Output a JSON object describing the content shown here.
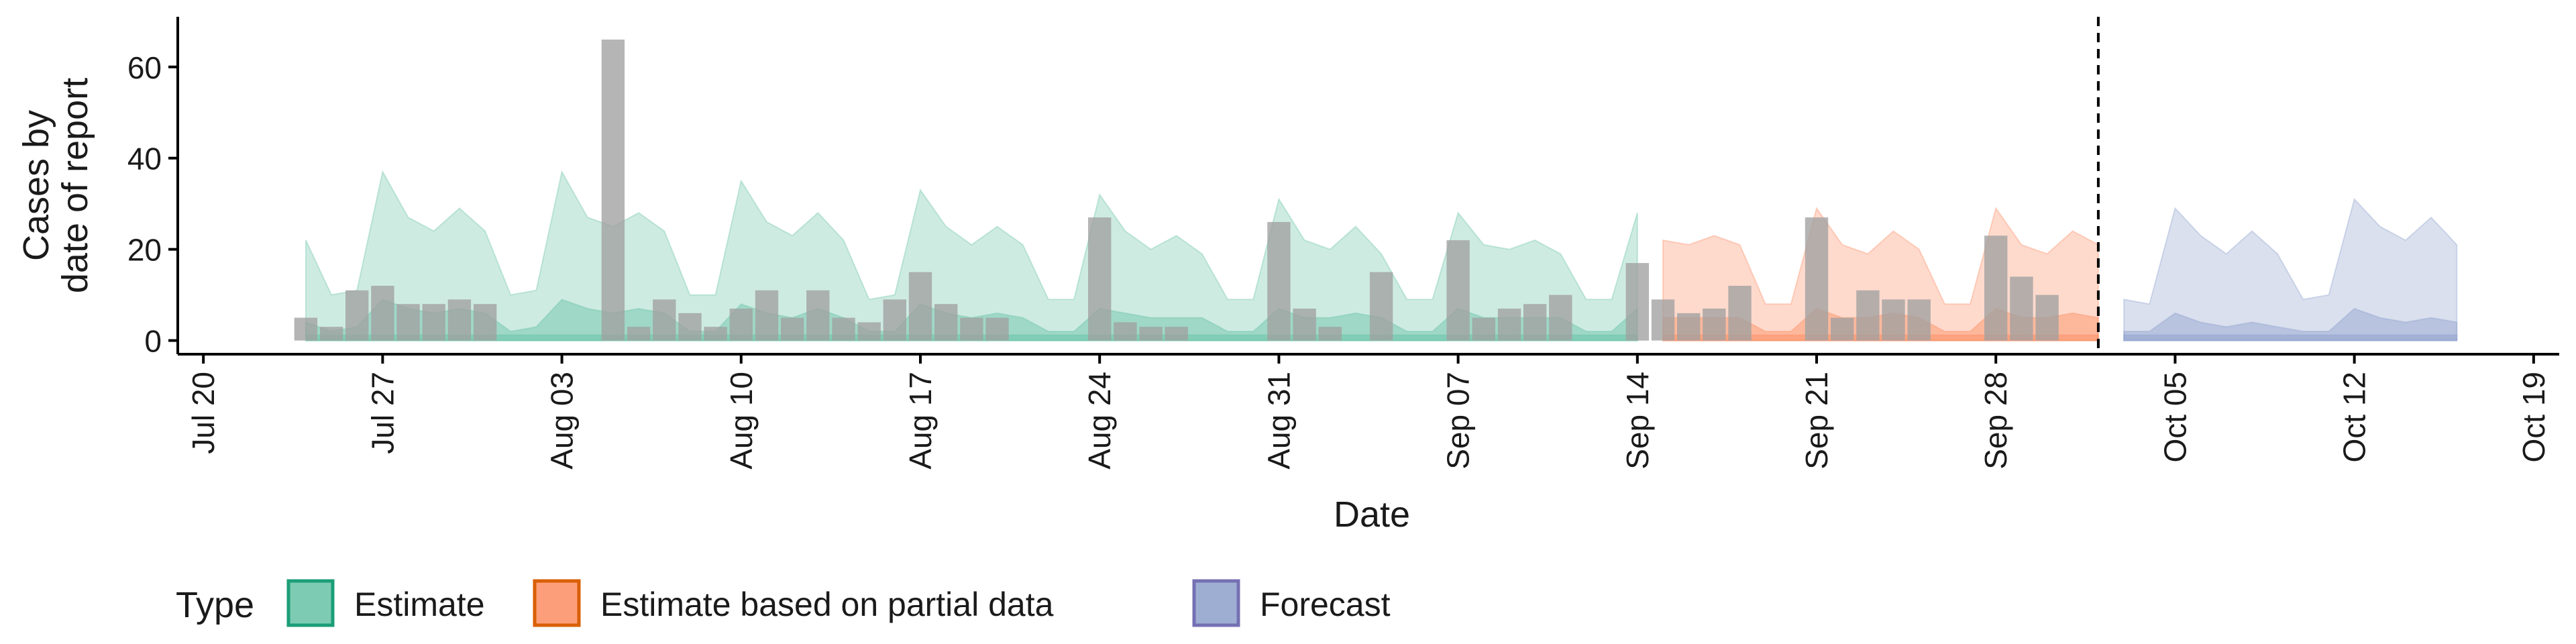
{
  "chart_data": {
    "type": "area",
    "title": "",
    "xlabel": "Date",
    "ylabel_lines": [
      "Cases by",
      "date of report"
    ],
    "ylim": [
      -3,
      71
    ],
    "yticks": [
      0,
      20,
      40,
      60
    ],
    "xlim": [
      "2020-07-19",
      "2020-10-20"
    ],
    "xticks": [
      {
        "date": "2020-07-20",
        "label": "Jul 20"
      },
      {
        "date": "2020-07-27",
        "label": "Jul 27"
      },
      {
        "date": "2020-08-03",
        "label": "Aug 03"
      },
      {
        "date": "2020-08-10",
        "label": "Aug 10"
      },
      {
        "date": "2020-08-17",
        "label": "Aug 17"
      },
      {
        "date": "2020-08-24",
        "label": "Aug 24"
      },
      {
        "date": "2020-08-31",
        "label": "Aug 31"
      },
      {
        "date": "2020-09-07",
        "label": "Sep 07"
      },
      {
        "date": "2020-09-14",
        "label": "Sep 14"
      },
      {
        "date": "2020-09-21",
        "label": "Sep 21"
      },
      {
        "date": "2020-09-28",
        "label": "Sep 28"
      },
      {
        "date": "2020-10-05",
        "label": "Oct 05"
      },
      {
        "date": "2020-10-12",
        "label": "Oct 12"
      },
      {
        "date": "2020-10-19",
        "label": "Oct 19"
      }
    ],
    "forecast_date": "2020-10-02",
    "legend": {
      "title": "Type",
      "position": "bottom",
      "entries": [
        {
          "label": "Estimate",
          "fill": "#66c2a5",
          "stroke": "#1b9e77"
        },
        {
          "label": "Estimate based on partial data",
          "fill": "#fc8d62",
          "stroke": "#d95f02"
        },
        {
          "label": "Forecast",
          "fill": "#8da0cb",
          "stroke": "#7570b3"
        }
      ]
    },
    "reported_cases": {
      "color": "#a0a0a0",
      "points": [
        [
          "2020-07-24",
          5
        ],
        [
          "2020-07-25",
          3
        ],
        [
          "2020-07-26",
          11
        ],
        [
          "2020-07-27",
          12
        ],
        [
          "2020-07-28",
          8
        ],
        [
          "2020-07-29",
          8
        ],
        [
          "2020-07-30",
          9
        ],
        [
          "2020-07-31",
          8
        ],
        [
          "2020-08-05",
          66
        ],
        [
          "2020-08-06",
          3
        ],
        [
          "2020-08-07",
          9
        ],
        [
          "2020-08-08",
          6
        ],
        [
          "2020-08-09",
          3
        ],
        [
          "2020-08-10",
          7
        ],
        [
          "2020-08-11",
          11
        ],
        [
          "2020-08-12",
          5
        ],
        [
          "2020-08-13",
          11
        ],
        [
          "2020-08-14",
          5
        ],
        [
          "2020-08-15",
          4
        ],
        [
          "2020-08-16",
          9
        ],
        [
          "2020-08-17",
          15
        ],
        [
          "2020-08-18",
          8
        ],
        [
          "2020-08-19",
          5
        ],
        [
          "2020-08-20",
          5
        ],
        [
          "2020-08-24",
          27
        ],
        [
          "2020-08-25",
          4
        ],
        [
          "2020-08-26",
          3
        ],
        [
          "2020-08-27",
          3
        ],
        [
          "2020-08-31",
          26
        ],
        [
          "2020-09-01",
          7
        ],
        [
          "2020-09-02",
          3
        ],
        [
          "2020-09-04",
          15
        ],
        [
          "2020-09-07",
          22
        ],
        [
          "2020-09-08",
          5
        ],
        [
          "2020-09-09",
          7
        ],
        [
          "2020-09-10",
          8
        ],
        [
          "2020-09-11",
          10
        ],
        [
          "2020-09-14",
          17
        ],
        [
          "2020-09-15",
          9
        ],
        [
          "2020-09-16",
          6
        ],
        [
          "2020-09-17",
          7
        ],
        [
          "2020-09-18",
          12
        ],
        [
          "2020-09-21",
          27
        ],
        [
          "2020-09-22",
          5
        ],
        [
          "2020-09-23",
          11
        ],
        [
          "2020-09-24",
          9
        ],
        [
          "2020-09-25",
          9
        ],
        [
          "2020-09-28",
          23
        ],
        [
          "2020-09-29",
          14
        ],
        [
          "2020-09-30",
          10
        ]
      ]
    },
    "series": [
      {
        "name": "Estimate",
        "start": "2020-07-24",
        "outer_upper": [
          22,
          10,
          11,
          37,
          27,
          24,
          29,
          24,
          10,
          11,
          37,
          27,
          25,
          28,
          24,
          10,
          10,
          35,
          26,
          23,
          28,
          22,
          9,
          10,
          33,
          25,
          21,
          25,
          21,
          9,
          9,
          32,
          24,
          20,
          23,
          19,
          9,
          9,
          31,
          22,
          20,
          25,
          19,
          9,
          9,
          28,
          21,
          20,
          22,
          19,
          9,
          9,
          28
        ],
        "inner_upper": [
          4,
          2,
          3,
          9,
          7,
          6,
          7,
          6,
          2,
          3,
          9,
          7,
          6,
          7,
          6,
          2,
          2,
          8,
          6,
          5,
          7,
          5,
          2,
          2,
          8,
          6,
          5,
          6,
          5,
          2,
          2,
          7,
          6,
          5,
          5,
          5,
          2,
          2,
          7,
          5,
          5,
          6,
          5,
          2,
          2,
          7,
          5,
          5,
          5,
          5,
          2,
          2,
          7
        ]
      },
      {
        "name": "Estimate based on partial data",
        "start": "2020-09-15",
        "outer_upper": [
          22,
          21,
          23,
          21,
          8,
          8,
          29,
          21,
          19,
          24,
          20,
          8,
          8,
          29,
          21,
          19,
          24,
          21
        ],
        "inner_upper": [
          5,
          5,
          5,
          5,
          2,
          2,
          7,
          5,
          5,
          6,
          5,
          2,
          2,
          7,
          5,
          5,
          6,
          5
        ]
      },
      {
        "name": "Forecast",
        "start": "2020-10-03",
        "outer_upper": [
          9,
          8,
          29,
          23,
          19,
          24,
          19,
          9,
          10,
          31,
          25,
          22,
          27,
          21
        ],
        "inner_upper": [
          2,
          2,
          6,
          4,
          3,
          4,
          3,
          2,
          2,
          7,
          5,
          4,
          5,
          4
        ]
      }
    ]
  }
}
